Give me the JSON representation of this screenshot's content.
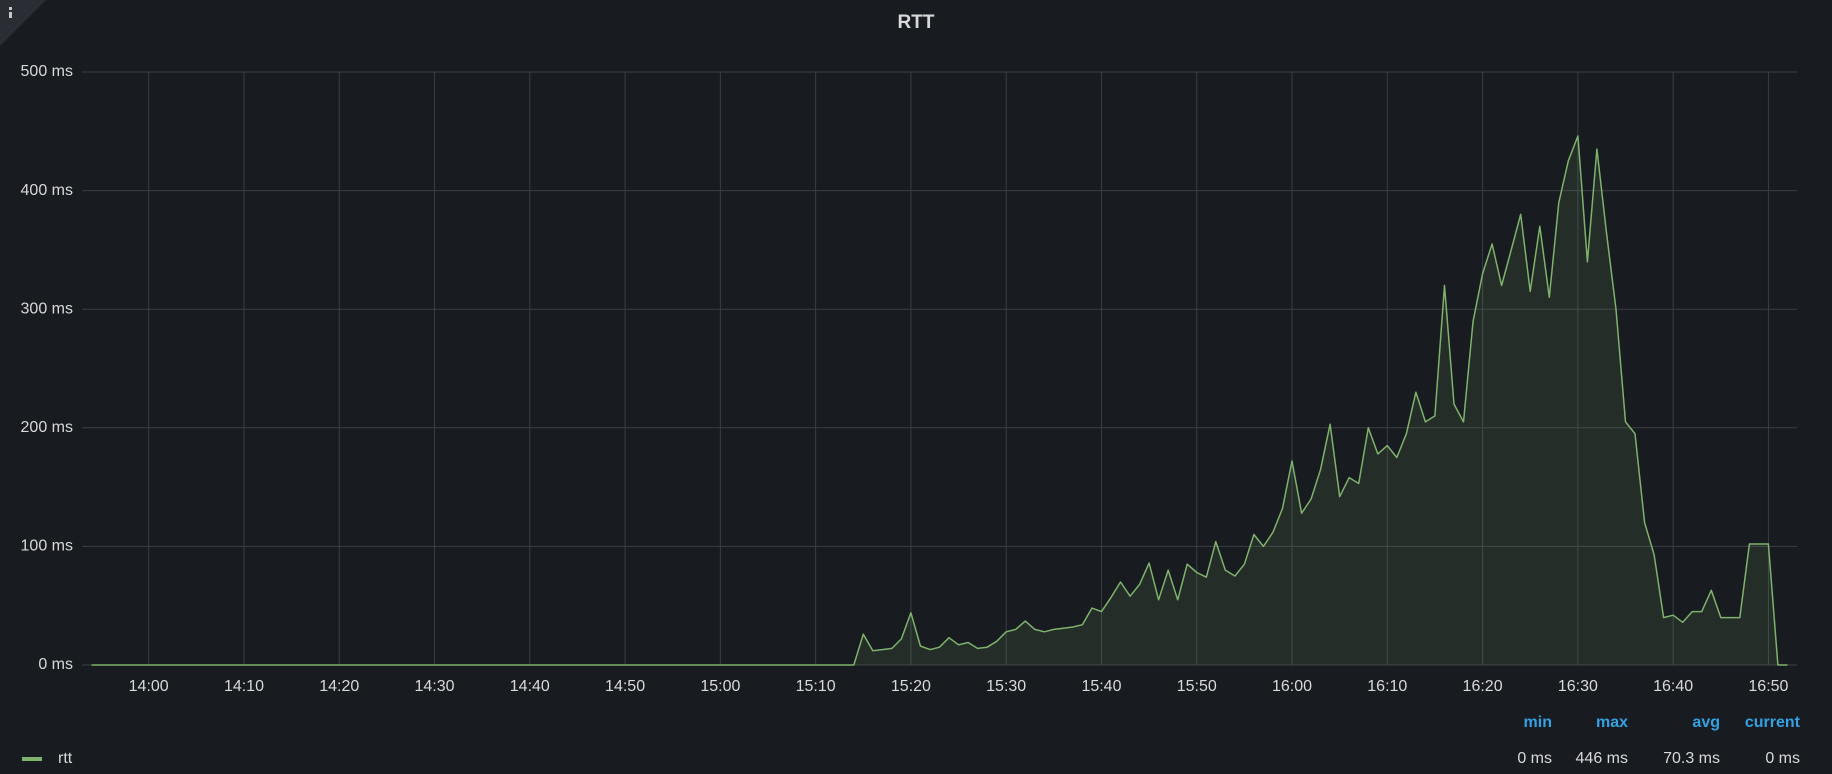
{
  "chart_data": {
    "type": "line",
    "title": "RTT",
    "x": [
      "13:54",
      "15:14",
      "15:15",
      "15:16",
      "15:17",
      "15:18",
      "15:19",
      "15:20",
      "15:21",
      "15:22",
      "15:23",
      "15:24",
      "15:25",
      "15:26",
      "15:27",
      "15:28",
      "15:29",
      "15:30",
      "15:31",
      "15:32",
      "15:33",
      "15:34",
      "15:35",
      "15:36",
      "15:37",
      "15:38",
      "15:39",
      "15:40",
      "15:41",
      "15:42",
      "15:43",
      "15:44",
      "15:45",
      "15:46",
      "15:47",
      "15:48",
      "15:49",
      "15:50",
      "15:51",
      "15:52",
      "15:53",
      "15:54",
      "15:55",
      "15:56",
      "15:57",
      "15:58",
      "15:59",
      "16:00",
      "16:01",
      "16:02",
      "16:03",
      "16:04",
      "16:05",
      "16:06",
      "16:07",
      "16:08",
      "16:09",
      "16:10",
      "16:11",
      "16:12",
      "16:13",
      "16:14",
      "16:15",
      "16:16",
      "16:17",
      "16:18",
      "16:19",
      "16:20",
      "16:21",
      "16:22",
      "16:23",
      "16:24",
      "16:25",
      "16:26",
      "16:27",
      "16:28",
      "16:29",
      "16:30",
      "16:31",
      "16:32",
      "16:33",
      "16:34",
      "16:35",
      "16:36",
      "16:37",
      "16:38",
      "16:39",
      "16:40",
      "16:41",
      "16:42",
      "16:43",
      "16:44",
      "16:45",
      "16:46",
      "16:47",
      "16:48",
      "16:49",
      "16:50",
      "16:51",
      "16:52"
    ],
    "series": [
      {
        "name": "rtt",
        "color": "#7eb26d",
        "values": [
          0,
          0,
          26,
          12,
          13,
          14,
          22,
          44,
          16,
          13,
          15,
          23,
          17,
          19,
          14,
          15,
          20,
          28,
          30,
          37,
          30,
          28,
          30,
          31,
          32,
          34,
          48,
          45,
          57,
          70,
          58,
          68,
          86,
          55,
          80,
          55,
          85,
          78,
          74,
          104,
          80,
          75,
          85,
          110,
          100,
          112,
          132,
          172,
          128,
          140,
          165,
          203,
          142,
          158,
          153,
          200,
          178,
          185,
          175,
          195,
          230,
          205,
          210,
          320,
          220,
          205,
          290,
          330,
          355,
          320,
          350,
          380,
          315,
          370,
          310,
          390,
          425,
          446,
          340,
          435,
          365,
          300,
          205,
          195,
          120,
          93,
          40,
          42,
          36,
          45,
          45,
          63,
          40,
          40,
          40,
          102,
          102,
          102,
          0,
          0
        ]
      }
    ],
    "xlim": [
      "13:53",
      "16:53"
    ],
    "xticks": [
      "14:00",
      "14:10",
      "14:20",
      "14:30",
      "14:40",
      "14:50",
      "15:00",
      "15:10",
      "15:20",
      "15:30",
      "15:40",
      "15:50",
      "16:00",
      "16:10",
      "16:20",
      "16:30",
      "16:40",
      "16:50"
    ],
    "ylim": [
      0,
      500
    ],
    "yticks": [
      {
        "value": 0,
        "label": "0 ms"
      },
      {
        "value": 100,
        "label": "100 ms"
      },
      {
        "value": 200,
        "label": "200 ms"
      },
      {
        "value": 300,
        "label": "300 ms"
      },
      {
        "value": 400,
        "label": "400 ms"
      },
      {
        "value": 500,
        "label": "500 ms"
      }
    ],
    "grid": true,
    "legend_stats": {
      "columns": [
        "min",
        "max",
        "avg",
        "current"
      ],
      "values": [
        "0 ms",
        "446 ms",
        "70.3 ms",
        "0 ms"
      ]
    }
  }
}
